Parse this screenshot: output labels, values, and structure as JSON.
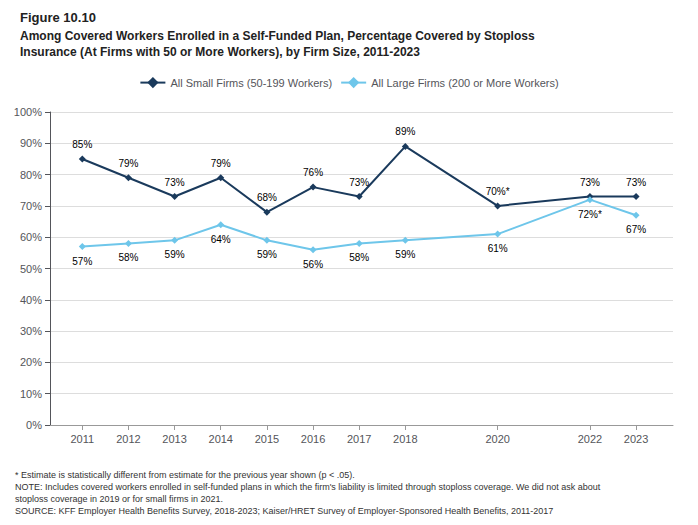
{
  "chart_data": {
    "type": "line",
    "title": "Figure 10.10",
    "subtitle": [
      "Among Covered Workers Enrolled in a Self-Funded Plan, Percentage Covered by Stoploss",
      "Insurance (At Firms with 50 or More Workers), by Firm Size, 2011-2023"
    ],
    "annotations": [
      "* Estimate is statistically different from estimate for the previous year shown (p < .05).",
      "NOTE: Includes covered workers enrolled in self-funded plans in which the firm's liability is limited through stoploss coverage. We did not ask about",
      "stoploss coverage in 2019 or for small firms in 2021.",
      "SOURCE: KFF Employer Health Benefits Survey, 2018-2023; Kaiser/HRET Survey of Employer-Sponsored Health Benefits, 2011-2017"
    ],
    "x": [
      2011,
      2012,
      2013,
      2014,
      2015,
      2016,
      2017,
      2018,
      2020,
      2022,
      2023
    ],
    "xlim": [
      2010.3,
      2023.8
    ],
    "xticks": [
      2011,
      2012,
      2013,
      2014,
      2015,
      2016,
      2017,
      2018,
      2020,
      2022,
      2023
    ],
    "ylim": [
      0,
      100
    ],
    "yticks": [
      {
        "value": 0,
        "label": "0%"
      },
      {
        "value": 10,
        "label": "10%"
      },
      {
        "value": 20,
        "label": "20%"
      },
      {
        "value": 30,
        "label": "30%"
      },
      {
        "value": 40,
        "label": "40%"
      },
      {
        "value": 50,
        "label": "50%"
      },
      {
        "value": 60,
        "label": "60%"
      },
      {
        "value": 70,
        "label": "70%"
      },
      {
        "value": 80,
        "label": "80%"
      },
      {
        "value": 90,
        "label": "90%"
      },
      {
        "value": 100,
        "label": "100%"
      }
    ],
    "grid": true,
    "legend": "top",
    "data_labels": true,
    "marker": "diamond",
    "line_style": "solid",
    "series": [
      {
        "name": "All Small Firms (50-199 Workers)",
        "color": "#1a3a5c",
        "values": [
          85,
          79,
          73,
          79,
          68,
          76,
          73,
          89,
          70,
          73,
          73
        ],
        "value_labels": [
          "85%",
          "79%",
          "73%",
          "79%",
          "68%",
          "76%",
          "73%",
          "89%",
          "70%*",
          "73%",
          "73%"
        ]
      },
      {
        "name": "All Large Firms (200 or More Workers)",
        "color": "#6ec6ea",
        "values": [
          57,
          58,
          59,
          64,
          59,
          56,
          58,
          59,
          61,
          72,
          67
        ],
        "value_labels": [
          "57%",
          "58%",
          "59%",
          "64%",
          "59%",
          "56%",
          "58%",
          "59%",
          "61%",
          "72%*",
          "67%"
        ]
      }
    ]
  }
}
